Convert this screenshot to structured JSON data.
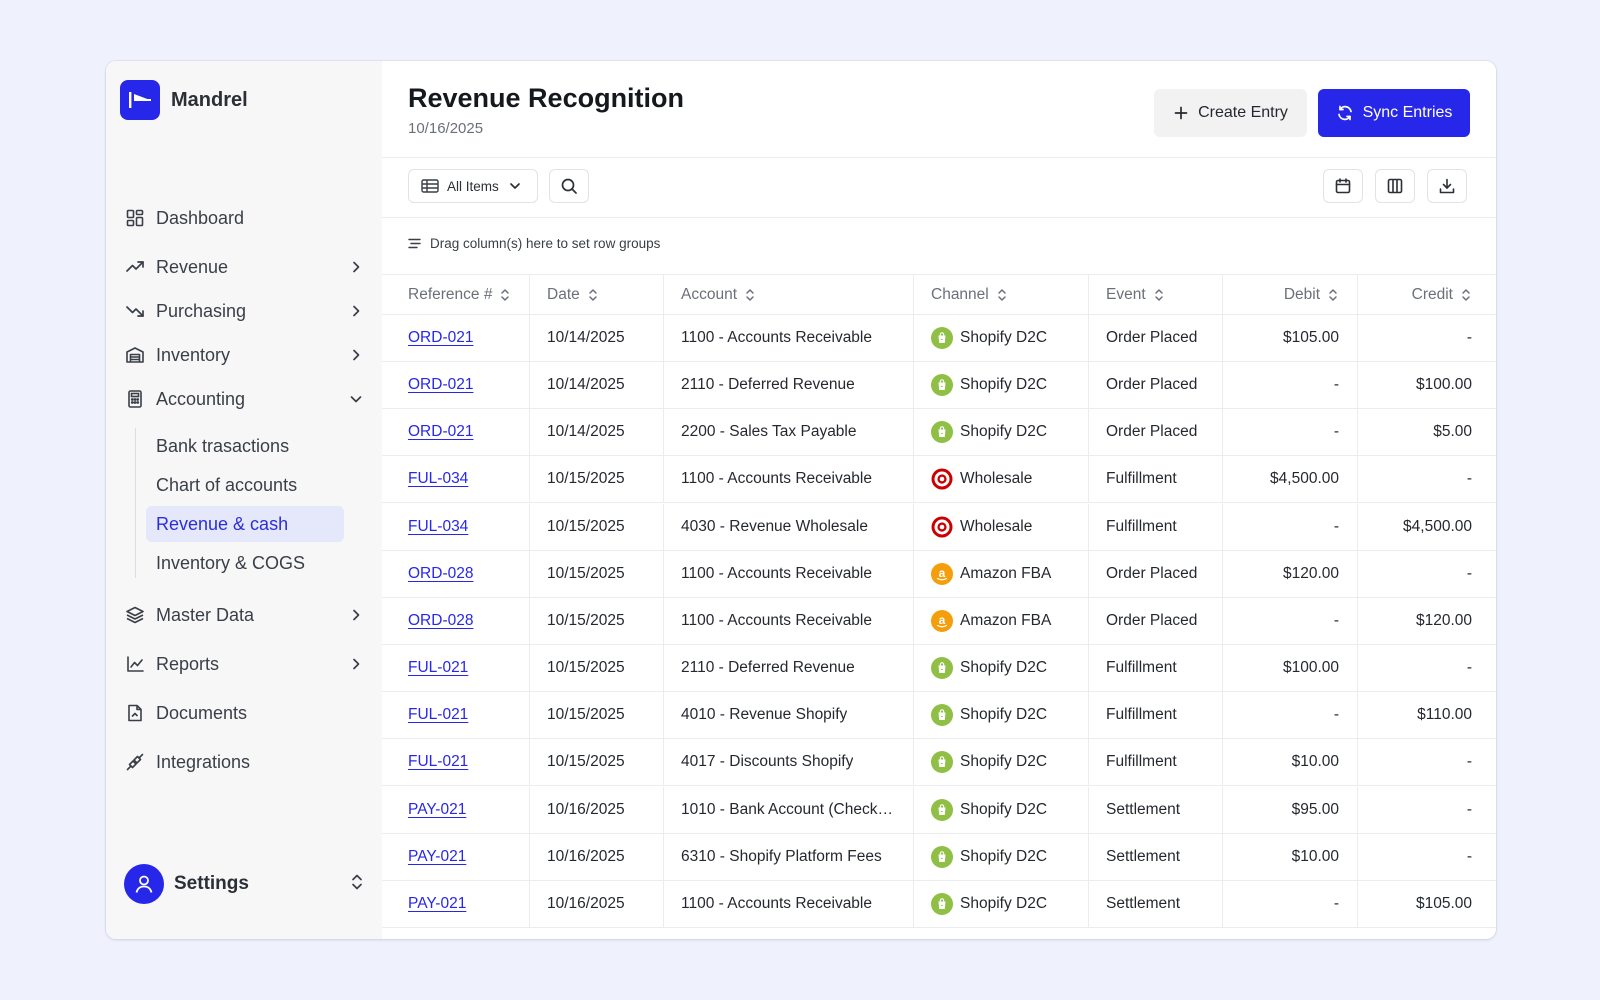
{
  "app": {
    "name": "Mandrel",
    "brand_color": "#2727ea"
  },
  "sidebar": {
    "items": [
      {
        "label": "Dashboard",
        "icon": "dashboard-icon",
        "has_chevron": false
      },
      {
        "label": "Revenue",
        "icon": "trending-up-icon",
        "has_chevron": true
      },
      {
        "label": "Purchasing",
        "icon": "trending-down-icon",
        "has_chevron": true
      },
      {
        "label": "Inventory",
        "icon": "warehouse-icon",
        "has_chevron": true
      },
      {
        "label": "Accounting",
        "icon": "calculator-icon",
        "has_chevron": true,
        "expanded": true
      },
      {
        "label": "Master Data",
        "icon": "layers-icon",
        "has_chevron": true
      },
      {
        "label": "Reports",
        "icon": "line-chart-icon",
        "has_chevron": true
      },
      {
        "label": "Documents",
        "icon": "document-icon",
        "has_chevron": false
      },
      {
        "label": "Integrations",
        "icon": "plug-icon",
        "has_chevron": false
      }
    ],
    "accounting_sub": [
      {
        "label": "Bank trasactions",
        "active": false
      },
      {
        "label": "Chart of accounts",
        "active": false
      },
      {
        "label": "Revenue & cash",
        "active": true
      },
      {
        "label": "Inventory & COGS",
        "active": false
      }
    ],
    "settings_label": "Settings"
  },
  "header": {
    "title": "Revenue Recognition",
    "date": "10/16/2025",
    "create_label": "Create Entry",
    "sync_label": "Sync Entries"
  },
  "toolbar": {
    "view_select": "All Items",
    "group_hint": "Drag column(s) here to set row groups"
  },
  "table": {
    "columns": [
      "Reference #",
      "Date",
      "Account",
      "Channel",
      "Event",
      "Debit",
      "Credit"
    ],
    "rows": [
      {
        "ref": "ORD-021",
        "date": "10/14/2025",
        "account": "1100 - Accounts Receivable",
        "channel": "Shopify D2C",
        "event": "Order Placed",
        "debit": "$105.00",
        "credit": "-"
      },
      {
        "ref": "ORD-021",
        "date": "10/14/2025",
        "account": "2110 - Deferred Revenue",
        "channel": "Shopify D2C",
        "event": "Order Placed",
        "debit": "-",
        "credit": "$100.00"
      },
      {
        "ref": "ORD-021",
        "date": "10/14/2025",
        "account": "2200 - Sales Tax Payable",
        "channel": "Shopify D2C",
        "event": "Order Placed",
        "debit": "-",
        "credit": "$5.00"
      },
      {
        "ref": "FUL-034",
        "date": "10/15/2025",
        "account": "1100 - Accounts Receivable",
        "channel": "Wholesale",
        "event": "Fulfillment",
        "debit": "$4,500.00",
        "credit": "-"
      },
      {
        "ref": "FUL-034",
        "date": "10/15/2025",
        "account": "4030 - Revenue Wholesale",
        "channel": "Wholesale",
        "event": "Fulfillment",
        "debit": "-",
        "credit": "$4,500.00"
      },
      {
        "ref": "ORD-028",
        "date": "10/15/2025",
        "account": "1100 - Accounts Receivable",
        "channel": "Amazon FBA",
        "event": "Order Placed",
        "debit": "$120.00",
        "credit": "-"
      },
      {
        "ref": "ORD-028",
        "date": "10/15/2025",
        "account": "1100 - Accounts Receivable",
        "channel": "Amazon FBA",
        "event": "Order Placed",
        "debit": "-",
        "credit": "$120.00"
      },
      {
        "ref": "FUL-021",
        "date": "10/15/2025",
        "account": "2110 - Deferred Revenue",
        "channel": "Shopify D2C",
        "event": "Fulfillment",
        "debit": "$100.00",
        "credit": "-"
      },
      {
        "ref": "FUL-021",
        "date": "10/15/2025",
        "account": "4010 - Revenue Shopify",
        "channel": "Shopify D2C",
        "event": "Fulfillment",
        "debit": "-",
        "credit": "$110.00"
      },
      {
        "ref": "FUL-021",
        "date": "10/15/2025",
        "account": "4017 - Discounts Shopify",
        "channel": "Shopify D2C",
        "event": "Fulfillment",
        "debit": "$10.00",
        "credit": "-"
      },
      {
        "ref": "PAY-021",
        "date": "10/16/2025",
        "account": "1010 - Bank Account (Check…",
        "channel": "Shopify D2C",
        "event": "Settlement",
        "debit": "$95.00",
        "credit": "-"
      },
      {
        "ref": "PAY-021",
        "date": "10/16/2025",
        "account": "6310 - Shopify Platform Fees",
        "channel": "Shopify D2C",
        "event": "Settlement",
        "debit": "$10.00",
        "credit": "-"
      },
      {
        "ref": "PAY-021",
        "date": "10/16/2025",
        "account": "1100 - Accounts Receivable",
        "channel": "Shopify D2C",
        "event": "Settlement",
        "debit": "-",
        "credit": "$105.00"
      }
    ]
  },
  "channel_colors": {
    "Shopify D2C": "#8fbf45",
    "Wholesale": "#cc0000",
    "Amazon FBA": "#f59e0b"
  }
}
